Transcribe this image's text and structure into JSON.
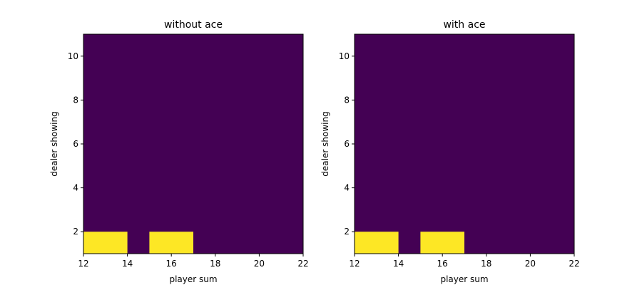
{
  "chart_data": [
    {
      "type": "heatmap",
      "title": "without ace",
      "xlabel": "player sum",
      "ylabel": "dealer showing",
      "xlim": [
        12,
        22
      ],
      "ylim": [
        1,
        11
      ],
      "xticks": [
        12,
        14,
        16,
        18,
        20,
        22
      ],
      "yticks": [
        2,
        4,
        6,
        8,
        10
      ],
      "low_color": "#440154",
      "high_color": "#fde725",
      "grid": false,
      "cells": [
        {
          "x0": 12,
          "x1": 14,
          "y0": 1,
          "y1": 2,
          "value": 1
        },
        {
          "x0": 15,
          "x1": 17,
          "y0": 1,
          "y1": 2,
          "value": 1
        }
      ]
    },
    {
      "type": "heatmap",
      "title": "with ace",
      "xlabel": "player sum",
      "ylabel": "dealer showing",
      "xlim": [
        12,
        22
      ],
      "ylim": [
        1,
        11
      ],
      "xticks": [
        12,
        14,
        16,
        18,
        20,
        22
      ],
      "yticks": [
        2,
        4,
        6,
        8,
        10
      ],
      "low_color": "#440154",
      "high_color": "#fde725",
      "grid": false,
      "cells": [
        {
          "x0": 12,
          "x1": 14,
          "y0": 1,
          "y1": 2,
          "value": 1
        },
        {
          "x0": 15,
          "x1": 17,
          "y0": 1,
          "y1": 2,
          "value": 1
        }
      ]
    }
  ]
}
